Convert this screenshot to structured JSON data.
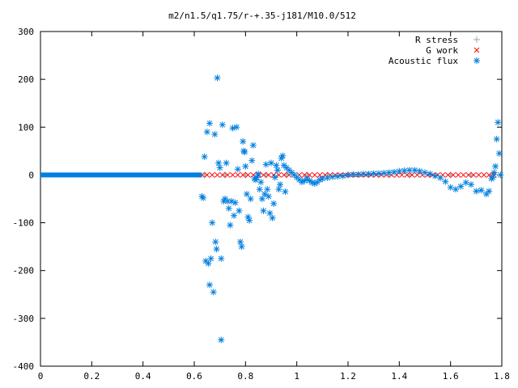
{
  "chart_data": {
    "type": "scatter",
    "title": "m2/n1.5/q1.75/r-+.35-j181/M10.0/512",
    "xlabel": "",
    "ylabel": "",
    "xlim": [
      0,
      1.8
    ],
    "ylim": [
      -400,
      300
    ],
    "x_ticks": [
      "0",
      "0.2",
      "0.4",
      "0.6",
      "0.8",
      "1",
      "1.2",
      "1.4",
      "1.6",
      "1.8"
    ],
    "y_ticks": [
      "300",
      "200",
      "100",
      "0",
      "-100",
      "-200",
      "-300",
      "-400"
    ],
    "x_tick_values": [
      0,
      0.2,
      0.4,
      0.6,
      0.8,
      1.0,
      1.2,
      1.4,
      1.6,
      1.8
    ],
    "y_tick_values": [
      300,
      200,
      100,
      0,
      -100,
      -200,
      -300,
      -400
    ],
    "grid": false,
    "legend_position": "top-right",
    "series": [
      {
        "name": "R stress",
        "marker": "+",
        "color": "#a0a0a0",
        "points": [
          [
            0.64,
            0
          ],
          [
            0.72,
            0
          ],
          [
            0.8,
            0
          ],
          [
            0.88,
            0
          ],
          [
            0.96,
            0
          ],
          [
            1.04,
            0
          ],
          [
            1.12,
            0
          ],
          [
            1.2,
            0
          ],
          [
            1.28,
            0
          ],
          [
            1.36,
            0
          ],
          [
            1.44,
            0
          ],
          [
            1.52,
            0
          ],
          [
            1.6,
            0
          ],
          [
            1.68,
            0
          ],
          [
            1.76,
            0
          ]
        ]
      },
      {
        "name": "G work",
        "marker": "x",
        "color": "#ff0000",
        "points": [
          [
            0.63,
            0
          ],
          [
            0.65,
            0
          ],
          [
            0.67,
            0
          ],
          [
            0.69,
            0
          ],
          [
            0.71,
            0
          ],
          [
            0.73,
            0
          ],
          [
            0.75,
            0
          ],
          [
            0.77,
            0
          ],
          [
            0.79,
            0
          ],
          [
            0.81,
            0
          ],
          [
            0.83,
            0
          ],
          [
            0.85,
            0
          ],
          [
            0.87,
            0
          ],
          [
            0.89,
            0
          ],
          [
            0.91,
            0
          ],
          [
            0.93,
            0
          ],
          [
            0.95,
            0
          ],
          [
            0.97,
            0
          ],
          [
            0.99,
            0
          ],
          [
            1.01,
            0
          ],
          [
            1.03,
            0
          ],
          [
            1.05,
            0
          ],
          [
            1.07,
            0
          ],
          [
            1.09,
            0
          ],
          [
            1.11,
            0
          ],
          [
            1.13,
            0
          ],
          [
            1.15,
            0
          ],
          [
            1.17,
            0
          ],
          [
            1.19,
            0
          ],
          [
            1.21,
            0
          ],
          [
            1.23,
            0
          ],
          [
            1.25,
            0
          ],
          [
            1.27,
            0
          ],
          [
            1.29,
            0
          ],
          [
            1.31,
            0
          ],
          [
            1.33,
            0
          ],
          [
            1.35,
            0
          ],
          [
            1.37,
            0
          ],
          [
            1.39,
            0
          ],
          [
            1.41,
            0
          ],
          [
            1.43,
            0
          ],
          [
            1.45,
            0
          ],
          [
            1.47,
            0
          ],
          [
            1.49,
            0
          ],
          [
            1.51,
            0
          ],
          [
            1.53,
            0
          ],
          [
            1.55,
            0
          ],
          [
            1.57,
            0
          ],
          [
            1.59,
            0
          ],
          [
            1.61,
            0
          ],
          [
            1.63,
            0
          ],
          [
            1.65,
            0
          ],
          [
            1.67,
            0
          ],
          [
            1.69,
            0
          ],
          [
            1.71,
            0
          ],
          [
            1.73,
            0
          ],
          [
            1.75,
            0
          ],
          [
            1.77,
            0
          ]
        ]
      },
      {
        "name": "Acoustic flux",
        "marker": "*",
        "color": "#0080e0",
        "points": [
          [
            0.63,
            -45
          ],
          [
            0.635,
            -48
          ],
          [
            0.64,
            38
          ],
          [
            0.645,
            -180
          ],
          [
            0.65,
            90
          ],
          [
            0.655,
            -185
          ],
          [
            0.66,
            -230
          ],
          [
            0.66,
            108
          ],
          [
            0.665,
            -175
          ],
          [
            0.67,
            -100
          ],
          [
            0.675,
            -245
          ],
          [
            0.68,
            85
          ],
          [
            0.683,
            -140
          ],
          [
            0.687,
            -155
          ],
          [
            0.69,
            203
          ],
          [
            0.695,
            25
          ],
          [
            0.7,
            15
          ],
          [
            0.705,
            -345
          ],
          [
            0.705,
            -175
          ],
          [
            0.71,
            105
          ],
          [
            0.715,
            -55
          ],
          [
            0.72,
            -50
          ],
          [
            0.725,
            25
          ],
          [
            0.73,
            -55
          ],
          [
            0.735,
            -70
          ],
          [
            0.74,
            -105
          ],
          [
            0.745,
            -55
          ],
          [
            0.75,
            98
          ],
          [
            0.755,
            -85
          ],
          [
            0.76,
            -58
          ],
          [
            0.765,
            100
          ],
          [
            0.77,
            12
          ],
          [
            0.775,
            -75
          ],
          [
            0.78,
            -140
          ],
          [
            0.785,
            -150
          ],
          [
            0.79,
            70
          ],
          [
            0.793,
            50
          ],
          [
            0.797,
            48
          ],
          [
            0.8,
            18
          ],
          [
            0.805,
            -40
          ],
          [
            0.81,
            -88
          ],
          [
            0.815,
            -95
          ],
          [
            0.82,
            -50
          ],
          [
            0.825,
            30
          ],
          [
            0.83,
            62
          ],
          [
            0.835,
            -8
          ],
          [
            0.84,
            -10
          ],
          [
            0.845,
            -5
          ],
          [
            0.85,
            2
          ],
          [
            0.855,
            -30
          ],
          [
            0.86,
            -15
          ],
          [
            0.865,
            -50
          ],
          [
            0.87,
            -75
          ],
          [
            0.875,
            -40
          ],
          [
            0.88,
            22
          ],
          [
            0.885,
            -30
          ],
          [
            0.89,
            -45
          ],
          [
            0.895,
            -80
          ],
          [
            0.9,
            25
          ],
          [
            0.905,
            -90
          ],
          [
            0.91,
            -60
          ],
          [
            0.915,
            -5
          ],
          [
            0.92,
            20
          ],
          [
            0.925,
            10
          ],
          [
            0.93,
            -30
          ],
          [
            0.935,
            -20
          ],
          [
            0.94,
            35
          ],
          [
            0.945,
            40
          ],
          [
            0.95,
            20
          ],
          [
            0.955,
            -35
          ],
          [
            0.96,
            15
          ],
          [
            0.97,
            10
          ],
          [
            0.98,
            5
          ],
          [
            0.99,
            0
          ],
          [
            1.0,
            -5
          ],
          [
            1.01,
            -10
          ],
          [
            1.02,
            -15
          ],
          [
            1.03,
            -12
          ],
          [
            1.04,
            -8
          ],
          [
            1.05,
            -12
          ],
          [
            1.06,
            -16
          ],
          [
            1.07,
            -18
          ],
          [
            1.08,
            -15
          ],
          [
            1.09,
            -10
          ],
          [
            1.1,
            -8
          ],
          [
            1.12,
            -6
          ],
          [
            1.14,
            -4
          ],
          [
            1.16,
            -3
          ],
          [
            1.18,
            -2
          ],
          [
            1.2,
            0
          ],
          [
            1.22,
            1
          ],
          [
            1.24,
            1
          ],
          [
            1.26,
            2
          ],
          [
            1.28,
            2
          ],
          [
            1.3,
            3
          ],
          [
            1.32,
            3
          ],
          [
            1.34,
            4
          ],
          [
            1.36,
            5
          ],
          [
            1.38,
            6
          ],
          [
            1.4,
            8
          ],
          [
            1.42,
            9
          ],
          [
            1.44,
            10
          ],
          [
            1.46,
            10
          ],
          [
            1.48,
            8
          ],
          [
            1.5,
            5
          ],
          [
            1.52,
            2
          ],
          [
            1.54,
            -2
          ],
          [
            1.56,
            -6
          ],
          [
            1.58,
            -14
          ],
          [
            1.6,
            -26
          ],
          [
            1.62,
            -30
          ],
          [
            1.64,
            -24
          ],
          [
            1.66,
            -16
          ],
          [
            1.68,
            -20
          ],
          [
            1.7,
            -34
          ],
          [
            1.72,
            -32
          ],
          [
            1.74,
            -40
          ],
          [
            1.75,
            -34
          ],
          [
            1.76,
            -8
          ],
          [
            1.765,
            -5
          ],
          [
            1.77,
            5
          ],
          [
            1.775,
            18
          ],
          [
            1.78,
            75
          ],
          [
            1.785,
            110
          ],
          [
            1.79,
            45
          ],
          [
            1.795,
            0
          ]
        ],
        "baseline_segments": [
          [
            0,
            0.63,
            0
          ]
        ]
      }
    ]
  }
}
